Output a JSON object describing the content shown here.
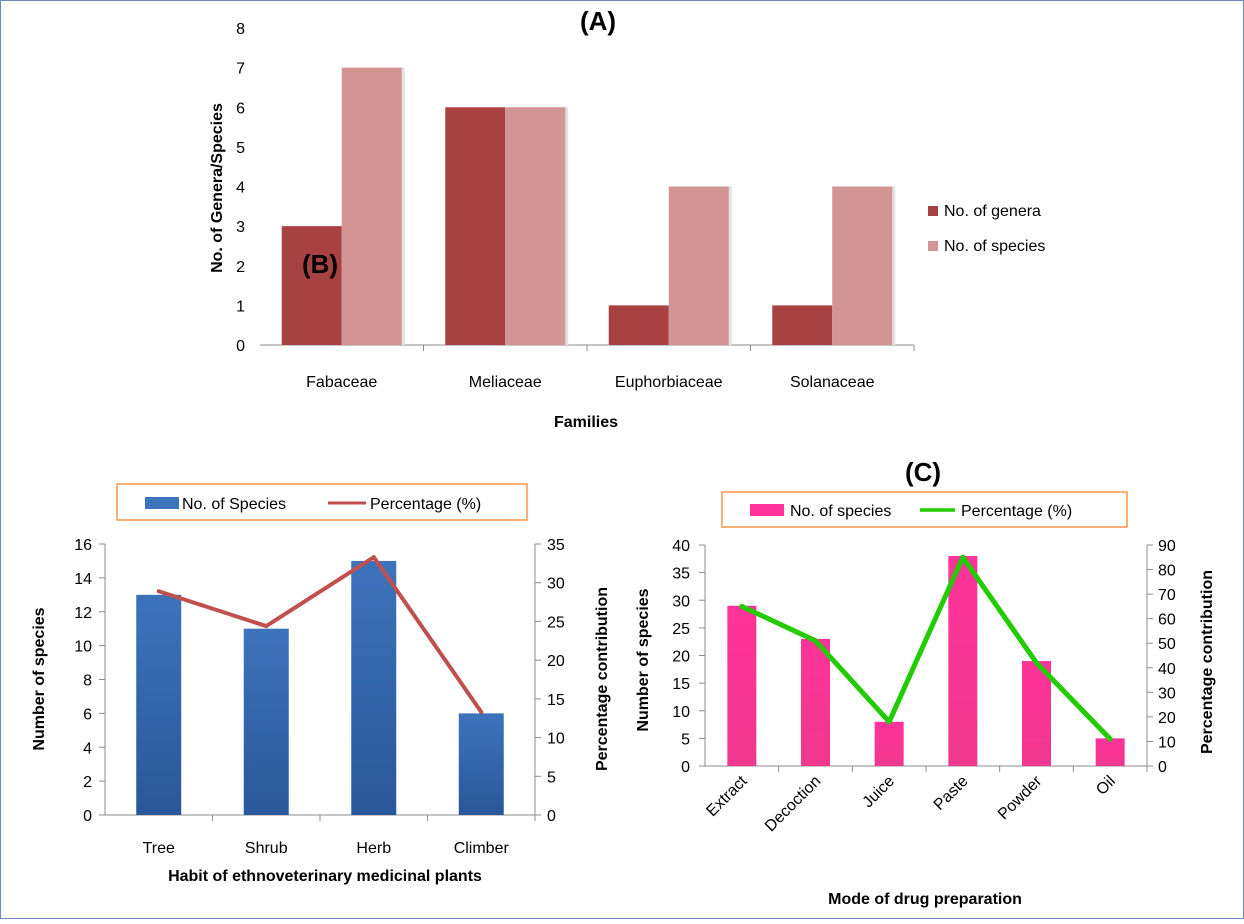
{
  "chart_data": [
    {
      "id": "A",
      "type": "bar",
      "title": "(A)",
      "xlabel": "Families",
      "ylabel": "No. of Genera/Species",
      "ylim": [
        0,
        8
      ],
      "yticks": [
        0,
        1,
        2,
        3,
        4,
        5,
        6,
        7,
        8
      ],
      "categories": [
        "Fabaceae",
        "Meliaceae",
        "Euphorbiaceae",
        "Solanaceae"
      ],
      "series": [
        {
          "name": "No. of genera",
          "values": [
            3,
            6,
            1,
            1
          ],
          "color": "#a84242"
        },
        {
          "name": "No. of species",
          "values": [
            7,
            6,
            4,
            4
          ],
          "color": "#d39494"
        }
      ],
      "legend": "right"
    },
    {
      "id": "B",
      "type": "bar",
      "title": "(B)",
      "xlabel": "Habit of ethnoveterinary medicinal plants",
      "ylabel": "Number of species",
      "y2label": "Percentage contribution",
      "ylim": [
        0,
        16
      ],
      "yticks": [
        0,
        2,
        4,
        6,
        8,
        10,
        12,
        14,
        16
      ],
      "y2lim": [
        0,
        35
      ],
      "y2ticks": [
        0,
        5,
        10,
        15,
        20,
        25,
        30,
        35
      ],
      "categories": [
        "Tree",
        "Shrub",
        "Herb",
        "Climber"
      ],
      "series": [
        {
          "name": "No. of Species",
          "kind": "bar",
          "axis": "left",
          "values": [
            13,
            11,
            15,
            6
          ],
          "color": "#3d73bb"
        },
        {
          "name": "Percentage (%)",
          "kind": "line",
          "axis": "right",
          "values": [
            28.9,
            24.4,
            33.3,
            13.3
          ],
          "color": "#c0504d"
        }
      ],
      "legend": "top"
    },
    {
      "id": "C",
      "type": "bar",
      "title": "(C)",
      "xlabel": "Mode of drug preparation",
      "ylabel": "Number of species",
      "y2label": "Percentage contribution",
      "ylim": [
        0,
        40
      ],
      "yticks": [
        0,
        5,
        10,
        15,
        20,
        25,
        30,
        35,
        40
      ],
      "y2lim": [
        0,
        90
      ],
      "y2ticks": [
        0,
        10,
        20,
        30,
        40,
        50,
        60,
        70,
        80,
        90
      ],
      "categories": [
        "Extract",
        "Decoction",
        "Juice",
        "Paste",
        "Powder",
        "Oil"
      ],
      "series": [
        {
          "name": "No. of species",
          "kind": "bar",
          "axis": "left",
          "values": [
            29,
            23,
            8,
            38,
            19,
            5
          ],
          "color": "#ff3399"
        },
        {
          "name": "Percentage (%)",
          "kind": "line",
          "axis": "right",
          "values": [
            65,
            51,
            18,
            85,
            42,
            11
          ],
          "color": "#22cc00"
        }
      ],
      "legend": "top"
    }
  ]
}
